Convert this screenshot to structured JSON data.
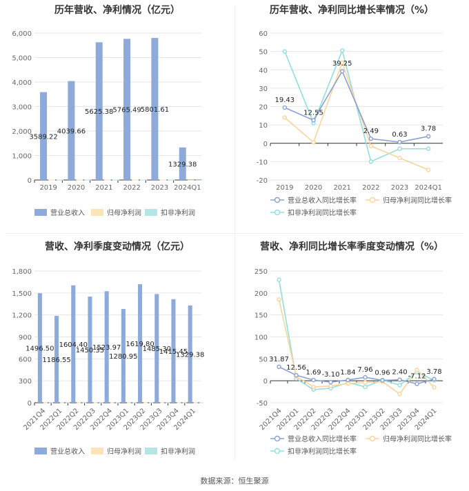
{
  "footer": "数据来源：恒生聚源",
  "colors": {
    "revenue": "#8eaadb",
    "parent": "#fde4b8",
    "deducted": "#b5e6e6",
    "rev_line": "#8b9fd6",
    "par_line": "#fbd49a",
    "ded_line": "#8fdfe0"
  },
  "chart_data": [
    {
      "type": "bar",
      "title": "历年营收、净利情况（亿元）",
      "categories": [
        "2019",
        "2020",
        "2021",
        "2022",
        "2023",
        "2024Q1"
      ],
      "series": [
        {
          "name": "营业总收入",
          "values": [
            3589.22,
            4039.66,
            5625.38,
            5765.49,
            5801.61,
            1329.38
          ]
        },
        {
          "name": "归母净利润",
          "values": [
            15,
            15,
            15,
            15,
            15,
            5
          ]
        },
        {
          "name": "扣非净利润",
          "values": [
            15,
            15,
            15,
            15,
            15,
            5
          ]
        }
      ],
      "data_labels": [
        "3589.22",
        "4039.66",
        "5625.38",
        "5765.49",
        "5801.61",
        "1329.38"
      ],
      "ylim": [
        0,
        6000
      ],
      "yticks": [
        "0",
        "1,000",
        "2,000",
        "3,000",
        "4,000",
        "5,000",
        "6,000"
      ],
      "legend": [
        "营业总收入",
        "归母净利润",
        "扣非净利润"
      ]
    },
    {
      "type": "line",
      "title": "历年营收、净利同比增长率情况（%）",
      "categories": [
        "2019",
        "2020",
        "2021",
        "2022",
        "2023",
        "2024Q1"
      ],
      "series": [
        {
          "name": "营业总收入同比增长率",
          "values": [
            19.43,
            12.55,
            39.25,
            2.49,
            0.63,
            3.78
          ]
        },
        {
          "name": "归母净利润同比增长率",
          "values": [
            14,
            0.5,
            44,
            -1.5,
            -8,
            -14.5
          ]
        },
        {
          "name": "扣非净利润同比增长率",
          "values": [
            50,
            11,
            50.5,
            -10,
            -3,
            -3
          ]
        }
      ],
      "data_labels": [
        "19.43",
        "12.55",
        "39.25",
        "2.49",
        "0.63",
        "3.78"
      ],
      "ylim": [
        -20,
        60
      ],
      "yticks": [
        "-20",
        "-10",
        "0",
        "10",
        "20",
        "30",
        "40",
        "50",
        "60"
      ],
      "legend": [
        "营业总收入同比增长率",
        "归母净利润同比增长率",
        "扣非净利润同比增长率"
      ]
    },
    {
      "type": "bar",
      "title": "营收、净利季度变动情况（亿元）",
      "categories": [
        "2021Q4",
        "2022Q1",
        "2022Q2",
        "2022Q3",
        "2022Q4",
        "2023Q1",
        "2023Q2",
        "2023Q3",
        "2023Q4",
        "2024Q1"
      ],
      "series": [
        {
          "name": "营业总收入",
          "values": [
            1496.5,
            1186.55,
            1604.4,
            1450.35,
            1523.97,
            1280.95,
            1619.8,
            1485.3,
            1415.45,
            1329.38
          ]
        },
        {
          "name": "归母净利润",
          "values": [
            4,
            4,
            4,
            4,
            4,
            4,
            4,
            4,
            4,
            4
          ]
        },
        {
          "name": "扣非净利润",
          "values": [
            4,
            4,
            4,
            4,
            4,
            4,
            4,
            4,
            4,
            4
          ]
        }
      ],
      "data_labels": [
        "1496.50",
        "1186.55",
        "1604.40",
        "1450.35",
        "1523.97",
        "1280.95",
        "1619.80",
        "1485.30",
        "1415.45",
        "1329.38"
      ],
      "ylim": [
        0,
        1800
      ],
      "yticks": [
        "0",
        "300",
        "600",
        "900",
        "1,200",
        "1,500",
        "1,800"
      ],
      "legend": [
        "营业总收入",
        "归母净利润",
        "扣非净利润"
      ]
    },
    {
      "type": "line",
      "title": "营收、净利同比增长率季度变动情况（%）",
      "categories": [
        "2021Q4",
        "2022Q1",
        "2022Q2",
        "2022Q3",
        "2022Q4",
        "2023Q1",
        "2023Q2",
        "2023Q3",
        "2023Q4",
        "2024Q1"
      ],
      "series": [
        {
          "name": "营业总收入同比增长率",
          "values": [
            31.87,
            12.56,
            1.69,
            -3.1,
            1.84,
            7.96,
            0.96,
            2.4,
            -7.12,
            3.78
          ]
        },
        {
          "name": "归母净利润同比增长率",
          "values": [
            185,
            10,
            -14,
            -12,
            -6,
            -4,
            -2,
            -30,
            25,
            -15
          ]
        },
        {
          "name": "扣非净利润同比增长率",
          "values": [
            230,
            5,
            -20,
            -17,
            -4,
            -14,
            2,
            -10,
            20,
            1
          ]
        }
      ],
      "data_labels": [
        "31.87",
        "12.56",
        "1.69",
        "-3.10",
        "1.84",
        "7.96",
        "0.96",
        "2.40",
        "-7.12",
        "3.78"
      ],
      "ylim": [
        -50,
        250
      ],
      "yticks": [
        "-50",
        "0",
        "50",
        "100",
        "150",
        "200",
        "250"
      ],
      "legend": [
        "营业总收入同比增长率",
        "归母净利润同比增长率",
        "扣非净利润同比增长率"
      ]
    }
  ]
}
